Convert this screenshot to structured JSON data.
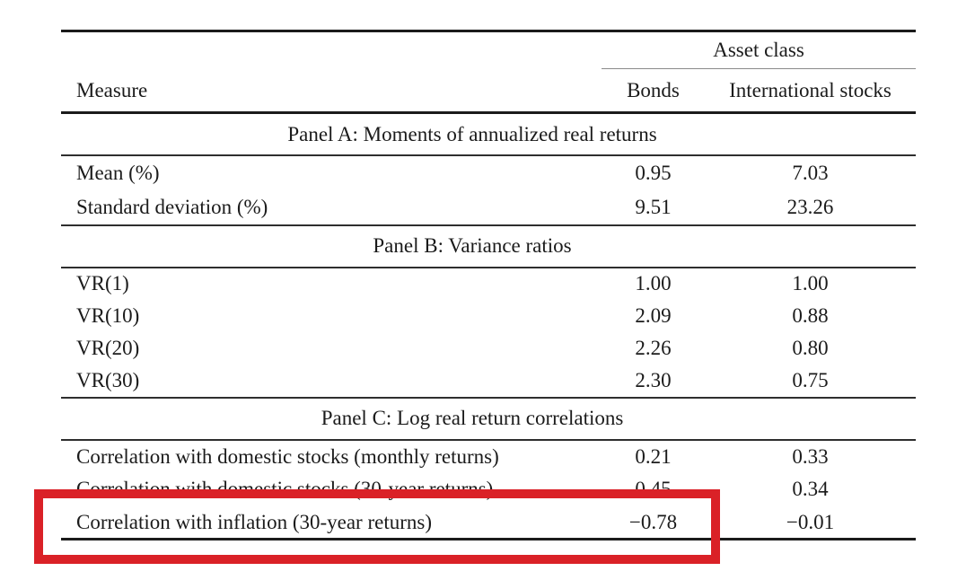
{
  "table": {
    "spanner_label": "Asset class",
    "columns": [
      "Measure",
      "Bonds",
      "International stocks"
    ],
    "panels": [
      {
        "title": "Panel A: Moments of annualized real returns",
        "rows": [
          {
            "label": "Mean (%)",
            "bonds": "0.95",
            "intl": "7.03"
          },
          {
            "label": "Standard deviation (%)",
            "bonds": "9.51",
            "intl": "23.26"
          }
        ]
      },
      {
        "title": "Panel B: Variance ratios",
        "rows": [
          {
            "label": "VR(1)",
            "bonds": "1.00",
            "intl": "1.00"
          },
          {
            "label": "VR(10)",
            "bonds": "2.09",
            "intl": "0.88"
          },
          {
            "label": "VR(20)",
            "bonds": "2.26",
            "intl": "0.80"
          },
          {
            "label": "VR(30)",
            "bonds": "2.30",
            "intl": "0.75"
          }
        ]
      },
      {
        "title": "Panel C: Log real return correlations",
        "rows": [
          {
            "label": "Correlation with domestic stocks (monthly returns)",
            "bonds": "0.21",
            "intl": "0.33"
          },
          {
            "label": "Correlation with domestic stocks (30-year returns)",
            "bonds": "0.45",
            "intl": "0.34"
          },
          {
            "label": "Correlation with inflation (30-year returns)",
            "bonds": "−0.78",
            "intl": "−0.01"
          }
        ]
      }
    ]
  },
  "annotation": {
    "type": "highlight-rectangle",
    "color": "#da2127",
    "target_row": "Correlation with inflation (30-year returns)"
  }
}
